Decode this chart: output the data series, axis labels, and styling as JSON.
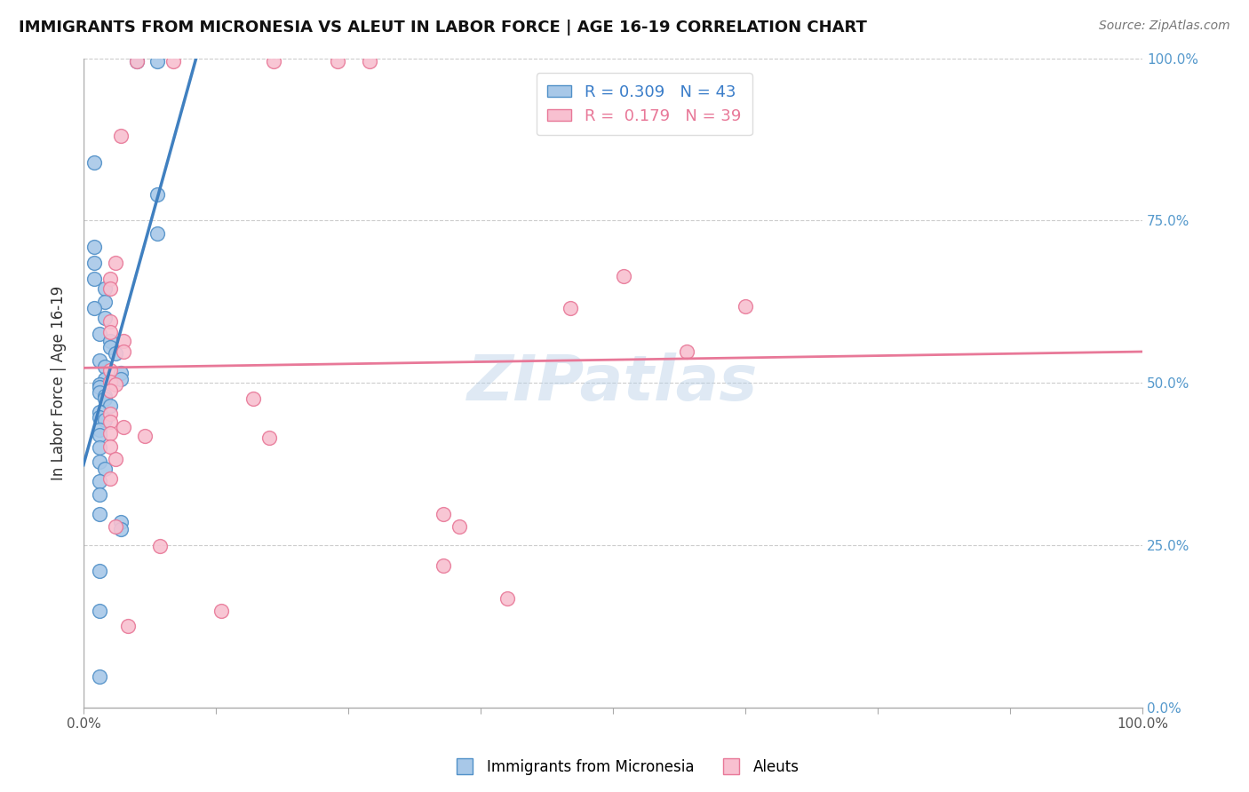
{
  "title": "IMMIGRANTS FROM MICRONESIA VS ALEUT IN LABOR FORCE | AGE 16-19 CORRELATION CHART",
  "source": "Source: ZipAtlas.com",
  "ylabel": "In Labor Force | Age 16-19",
  "xlim": [
    0.0,
    1.0
  ],
  "ylim": [
    0.0,
    1.0
  ],
  "legend_R_blue": "0.309",
  "legend_N_blue": "43",
  "legend_R_pink": "0.179",
  "legend_N_pink": "39",
  "watermark": "ZIPatlas",
  "blue_color": "#a8c8e8",
  "pink_color": "#f8c0d0",
  "blue_edge_color": "#5090c8",
  "pink_edge_color": "#e87898",
  "blue_line_color": "#4080c0",
  "pink_line_color": "#e87898",
  "blue_scatter": [
    [
      0.01,
      0.84
    ],
    [
      0.05,
      0.995
    ],
    [
      0.07,
      0.995
    ],
    [
      0.07,
      0.79
    ],
    [
      0.07,
      0.73
    ],
    [
      0.01,
      0.71
    ],
    [
      0.01,
      0.685
    ],
    [
      0.01,
      0.66
    ],
    [
      0.02,
      0.645
    ],
    [
      0.02,
      0.625
    ],
    [
      0.01,
      0.615
    ],
    [
      0.02,
      0.6
    ],
    [
      0.015,
      0.575
    ],
    [
      0.025,
      0.565
    ],
    [
      0.025,
      0.555
    ],
    [
      0.03,
      0.545
    ],
    [
      0.015,
      0.535
    ],
    [
      0.02,
      0.525
    ],
    [
      0.035,
      0.515
    ],
    [
      0.02,
      0.505
    ],
    [
      0.035,
      0.505
    ],
    [
      0.015,
      0.497
    ],
    [
      0.015,
      0.493
    ],
    [
      0.015,
      0.485
    ],
    [
      0.02,
      0.48
    ],
    [
      0.02,
      0.475
    ],
    [
      0.025,
      0.465
    ],
    [
      0.015,
      0.455
    ],
    [
      0.015,
      0.447
    ],
    [
      0.02,
      0.443
    ],
    [
      0.015,
      0.428
    ],
    [
      0.015,
      0.42
    ],
    [
      0.015,
      0.4
    ],
    [
      0.015,
      0.378
    ],
    [
      0.02,
      0.368
    ],
    [
      0.015,
      0.348
    ],
    [
      0.015,
      0.328
    ],
    [
      0.015,
      0.298
    ],
    [
      0.035,
      0.285
    ],
    [
      0.035,
      0.275
    ],
    [
      0.015,
      0.21
    ],
    [
      0.015,
      0.148
    ],
    [
      0.015,
      0.048
    ]
  ],
  "pink_scatter": [
    [
      0.05,
      0.995
    ],
    [
      0.085,
      0.995
    ],
    [
      0.18,
      0.995
    ],
    [
      0.24,
      0.995
    ],
    [
      0.27,
      0.995
    ],
    [
      0.035,
      0.88
    ],
    [
      0.03,
      0.685
    ],
    [
      0.025,
      0.66
    ],
    [
      0.025,
      0.645
    ],
    [
      0.025,
      0.595
    ],
    [
      0.025,
      0.578
    ],
    [
      0.038,
      0.565
    ],
    [
      0.038,
      0.548
    ],
    [
      0.025,
      0.52
    ],
    [
      0.025,
      0.502
    ],
    [
      0.03,
      0.498
    ],
    [
      0.025,
      0.488
    ],
    [
      0.16,
      0.475
    ],
    [
      0.025,
      0.452
    ],
    [
      0.025,
      0.44
    ],
    [
      0.038,
      0.432
    ],
    [
      0.025,
      0.422
    ],
    [
      0.058,
      0.418
    ],
    [
      0.175,
      0.415
    ],
    [
      0.025,
      0.402
    ],
    [
      0.03,
      0.382
    ],
    [
      0.025,
      0.352
    ],
    [
      0.34,
      0.298
    ],
    [
      0.03,
      0.278
    ],
    [
      0.355,
      0.278
    ],
    [
      0.072,
      0.248
    ],
    [
      0.34,
      0.218
    ],
    [
      0.4,
      0.168
    ],
    [
      0.13,
      0.148
    ],
    [
      0.042,
      0.125
    ],
    [
      0.46,
      0.615
    ],
    [
      0.51,
      0.665
    ],
    [
      0.57,
      0.548
    ],
    [
      0.625,
      0.618
    ]
  ],
  "xtick_positions": [
    0.0,
    0.125,
    0.25,
    0.375,
    0.5,
    0.625,
    0.75,
    0.875,
    1.0
  ],
  "ytick_positions": [
    0.0,
    0.25,
    0.5,
    0.75,
    1.0
  ]
}
